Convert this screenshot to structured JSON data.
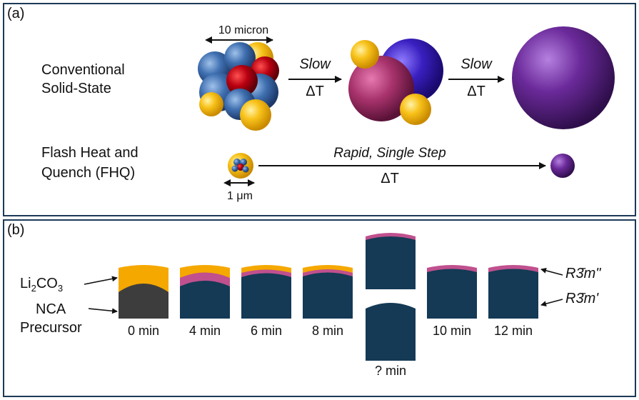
{
  "panel_a": {
    "label": "(a)",
    "scale_top": "10 micron",
    "row1_label_line1": "Conventional",
    "row1_label_line2": "Solid-State",
    "arrow1_top": "Slow",
    "arrow1_bottom": "ΔT",
    "arrow2_top": "Slow",
    "arrow2_bottom": "ΔT",
    "row2_label_line1": "Flash Heat and",
    "row2_label_line2": "Quench (FHQ)",
    "arrow3_top": "Rapid, Single Step",
    "arrow3_bottom": "ΔT",
    "scale_bottom": "1 μm",
    "colors": {
      "li2co3": "#f5b800",
      "nca_blue": "#3b6aa8",
      "red": "#b40010",
      "magenta": "#a8336c",
      "purple_blue": "#3a1fc0",
      "final_purple": "#6b2a9a"
    }
  },
  "panel_b": {
    "label": "(b)",
    "li2co3_label_main": "Li",
    "li2co3_sub1": "2",
    "li2co3_mid": "CO",
    "li2co3_sub2": "3",
    "nca_label_line1": "NCA",
    "nca_label_line2": "Precursor",
    "phase_top_label": "R3̄m\"",
    "phase_bottom_label": "R3̄m'",
    "times": [
      "0 min",
      "4 min",
      "6 min",
      "8 min",
      "? min",
      "10 min",
      "12 min"
    ],
    "colors": {
      "li2co3": "#f5a800",
      "precursor": "#3d3d3d",
      "layered": "#143a55",
      "pink_phase": "#c0508e"
    }
  }
}
